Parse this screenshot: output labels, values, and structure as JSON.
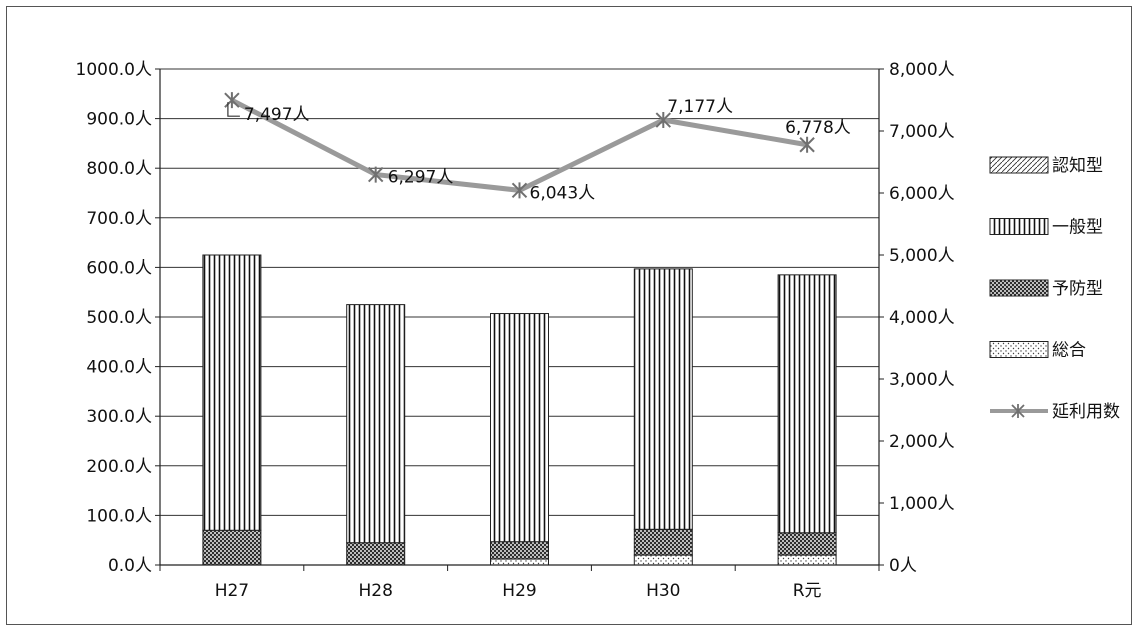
{
  "chart_data": {
    "type": "bar",
    "categories": [
      "H27",
      "H28",
      "H29",
      "H30",
      "R元"
    ],
    "series": [
      {
        "name": "総合",
        "axis": "left",
        "values": [
          0,
          0,
          12,
          20,
          20
        ]
      },
      {
        "name": "予防型",
        "axis": "left",
        "values": [
          70,
          45,
          35,
          52,
          45
        ]
      },
      {
        "name": "一般型",
        "axis": "left",
        "values": [
          555,
          480,
          460,
          525,
          520
        ]
      },
      {
        "name": "認知型",
        "axis": "left",
        "values": [
          0,
          0,
          0,
          0,
          0
        ]
      },
      {
        "name": "延利用数",
        "axis": "right",
        "type": "line",
        "values": [
          7497,
          6297,
          6043,
          7177,
          6778
        ]
      }
    ],
    "stacked": true,
    "data_labels": [
      "7,497人",
      "6,297人",
      "6,043人",
      "7,177人",
      "6,778人"
    ],
    "left_ticks": [
      "0.0人",
      "100.0人",
      "200.0人",
      "300.0人",
      "400.0人",
      "500.0人",
      "600.0人",
      "700.0人",
      "800.0人",
      "900.0人",
      "1000.0人"
    ],
    "right_ticks": [
      "0人",
      "1,000人",
      "2,000人",
      "3,000人",
      "4,000人",
      "5,000人",
      "6,000人",
      "7,000人",
      "8,000人"
    ],
    "ylim_left": [
      0,
      1000
    ],
    "ylim_right": [
      0,
      8000
    ],
    "grid": true,
    "legend_position": "right",
    "legend": [
      "認知型",
      "一般型",
      "予防型",
      "総合",
      "延利用数"
    ],
    "colors": {
      "line": "#9a9a9a",
      "marker": "#707070",
      "grid": "#333333",
      "bar_stroke": "#222222"
    }
  }
}
